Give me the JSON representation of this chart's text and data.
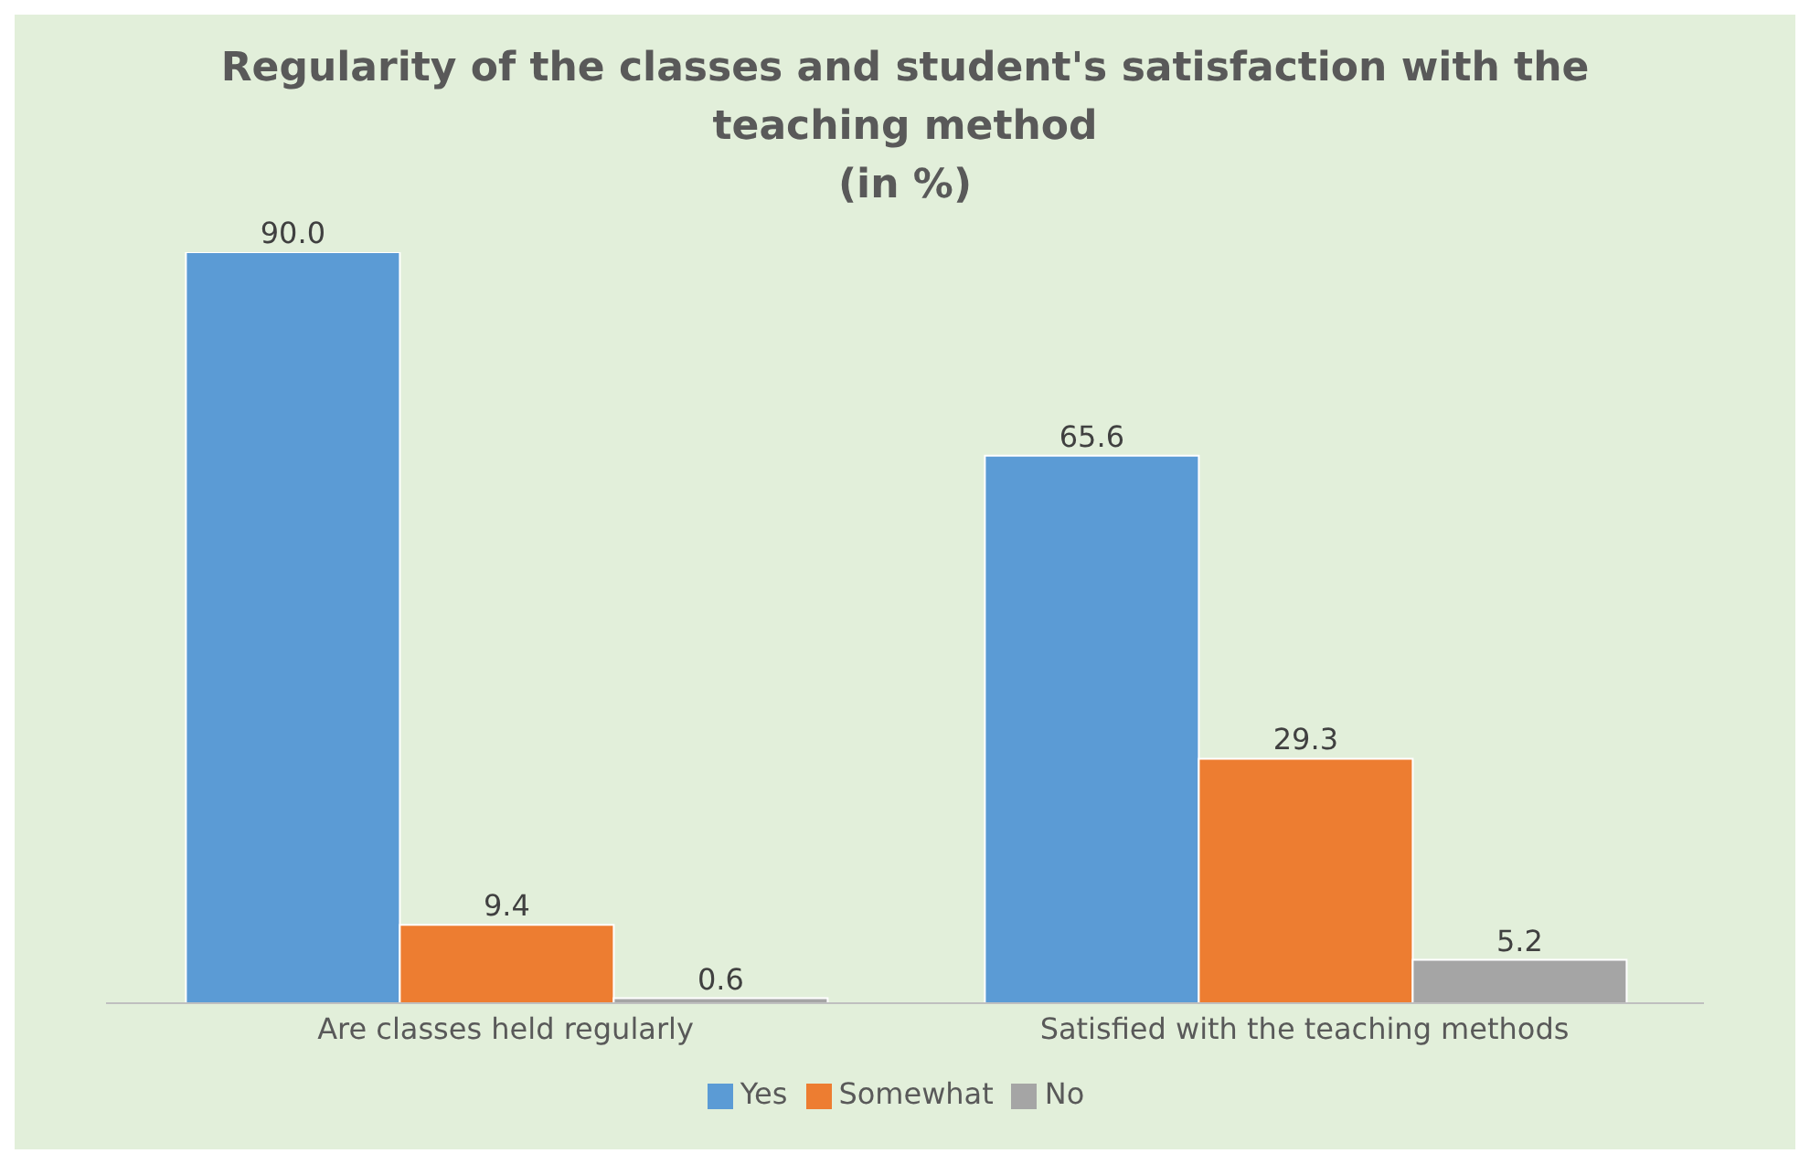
{
  "chart_data": {
    "type": "bar",
    "title": "Regularity of the classes and student's satisfaction with the teaching method",
    "subtitle": "(in %)",
    "categories": [
      "Are classes held regularly",
      "Satisfied with the teaching methods"
    ],
    "series": [
      {
        "name": "Yes",
        "color": "#5b9bd5",
        "values": [
          90.0,
          65.6
        ],
        "value_labels": [
          "90.0",
          "65.6"
        ]
      },
      {
        "name": "Somewhat",
        "color": "#ed7d31",
        "values": [
          9.4,
          29.3
        ],
        "value_labels": [
          "9.4",
          "29.3"
        ]
      },
      {
        "name": "No",
        "color": "#a5a5a5",
        "values": [
          0.6,
          5.2
        ],
        "value_labels": [
          "0.6",
          "5.2"
        ]
      }
    ],
    "tick_labels": "x",
    "grid": false,
    "legend": "bottom"
  }
}
